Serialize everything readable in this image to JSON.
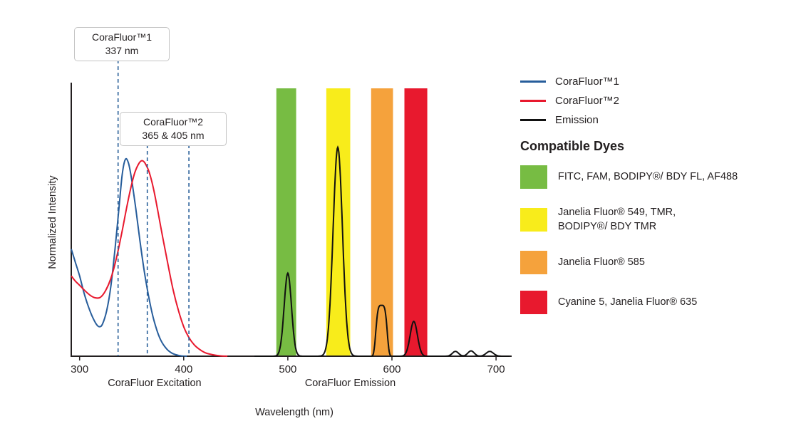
{
  "colors": {
    "blue": "#275d9b",
    "red": "#e8192e",
    "black": "#111111",
    "dashed": "#2a6099",
    "axis": "#231f20",
    "green_band": "#77bc43",
    "yellow_band": "#f8ec1b",
    "orange_band": "#f5a23c",
    "red_band": "#e8192e"
  },
  "annotations": [
    {
      "title": "CoraFluor™1",
      "subtitle": "337 nm",
      "lines_nm": [
        337
      ]
    },
    {
      "title": "CoraFluor™2",
      "subtitle": "365 & 405 nm",
      "lines_nm": [
        365,
        405
      ]
    }
  ],
  "legend": {
    "entries": [
      {
        "label": "CoraFluor™1",
        "color": "#275d9b"
      },
      {
        "label": "CoraFluor™2",
        "color": "#e8192e"
      },
      {
        "label": "Emission",
        "color": "#111111"
      }
    ],
    "dyes_heading": "Compatible Dyes",
    "dyes": [
      {
        "label": "FITC, FAM, BODIPY®/ BDY FL, AF488",
        "color": "#77bc43"
      },
      {
        "label": "Janelia Fluor® 549, TMR,\nBODIPY®/ BDY TMR",
        "color": "#f8ec1b"
      },
      {
        "label": "Janelia Fluor® 585",
        "color": "#f5a23c"
      },
      {
        "label": "Cyanine 5, Janelia Fluor® 635",
        "color": "#e8192e"
      }
    ]
  },
  "chart_data": {
    "type": "line",
    "title": "",
    "xlabel": "Wavelength (nm)",
    "ylabel": "Normalized Intensity",
    "xlim": [
      292,
      715
    ],
    "ylim": [
      0,
      1.05
    ],
    "xticks": [
      300,
      400,
      500,
      600,
      700
    ],
    "grid": false,
    "legend_position": "right",
    "x_region_labels": [
      {
        "text": "CoraFluor Excitation",
        "nm": 372
      },
      {
        "text": "CoraFluor Emission",
        "nm": 560
      }
    ],
    "bands": [
      {
        "name": "green",
        "color": "#77bc43",
        "from_nm": 489,
        "to_nm": 508
      },
      {
        "name": "yellow",
        "color": "#f8ec1b",
        "from_nm": 537,
        "to_nm": 560
      },
      {
        "name": "orange",
        "color": "#f5a23c",
        "from_nm": 580,
        "to_nm": 601
      },
      {
        "name": "red",
        "color": "#e8192e",
        "from_nm": 612,
        "to_nm": 634
      }
    ],
    "series": [
      {
        "name": "CoraFluor™1 excitation",
        "color": "#275d9b",
        "points": [
          [
            292,
            0.4
          ],
          [
            296,
            0.35
          ],
          [
            300,
            0.3
          ],
          [
            304,
            0.24
          ],
          [
            308,
            0.19
          ],
          [
            312,
            0.15
          ],
          [
            316,
            0.12
          ],
          [
            319,
            0.11
          ],
          [
            322,
            0.12
          ],
          [
            326,
            0.17
          ],
          [
            330,
            0.26
          ],
          [
            334,
            0.4
          ],
          [
            338,
            0.56
          ],
          [
            341,
            0.68
          ],
          [
            344,
            0.735
          ],
          [
            347,
            0.72
          ],
          [
            350,
            0.66
          ],
          [
            354,
            0.55
          ],
          [
            358,
            0.43
          ],
          [
            362,
            0.32
          ],
          [
            366,
            0.23
          ],
          [
            370,
            0.155
          ],
          [
            374,
            0.1
          ],
          [
            378,
            0.06
          ],
          [
            383,
            0.03
          ],
          [
            388,
            0.013
          ],
          [
            393,
            0.005
          ],
          [
            398,
            0.001
          ],
          [
            403,
            0
          ]
        ]
      },
      {
        "name": "CoraFluor™2 excitation",
        "color": "#e8192e",
        "points": [
          [
            292,
            0.3
          ],
          [
            296,
            0.28
          ],
          [
            300,
            0.265
          ],
          [
            305,
            0.245
          ],
          [
            310,
            0.228
          ],
          [
            315,
            0.218
          ],
          [
            320,
            0.22
          ],
          [
            325,
            0.245
          ],
          [
            330,
            0.29
          ],
          [
            335,
            0.36
          ],
          [
            340,
            0.45
          ],
          [
            345,
            0.55
          ],
          [
            349,
            0.625
          ],
          [
            353,
            0.685
          ],
          [
            357,
            0.72
          ],
          [
            360,
            0.73
          ],
          [
            363,
            0.72
          ],
          [
            367,
            0.685
          ],
          [
            371,
            0.625
          ],
          [
            375,
            0.545
          ],
          [
            380,
            0.44
          ],
          [
            385,
            0.34
          ],
          [
            390,
            0.245
          ],
          [
            395,
            0.17
          ],
          [
            400,
            0.11
          ],
          [
            405,
            0.07
          ],
          [
            410,
            0.043
          ],
          [
            415,
            0.026
          ],
          [
            420,
            0.014
          ],
          [
            425,
            0.008
          ],
          [
            430,
            0.004
          ],
          [
            436,
            0.001
          ],
          [
            442,
            0
          ]
        ]
      },
      {
        "name": "Emission",
        "color": "#111111",
        "peaks": [
          {
            "center": 500,
            "height": 0.31,
            "width": 3.5,
            "shape": 2
          },
          {
            "center": 548,
            "height": 0.78,
            "width": 4.5,
            "shape": 2
          },
          {
            "center": 590,
            "height": 0.19,
            "width": 5.0,
            "shape": 4
          },
          {
            "center": 621,
            "height": 0.13,
            "width": 3.5,
            "shape": 2
          },
          {
            "center": 661,
            "height": 0.018,
            "width": 3.0,
            "shape": 2
          },
          {
            "center": 676,
            "height": 0.02,
            "width": 3.0,
            "shape": 2
          },
          {
            "center": 694,
            "height": 0.018,
            "width": 3.5,
            "shape": 2
          }
        ]
      }
    ]
  }
}
